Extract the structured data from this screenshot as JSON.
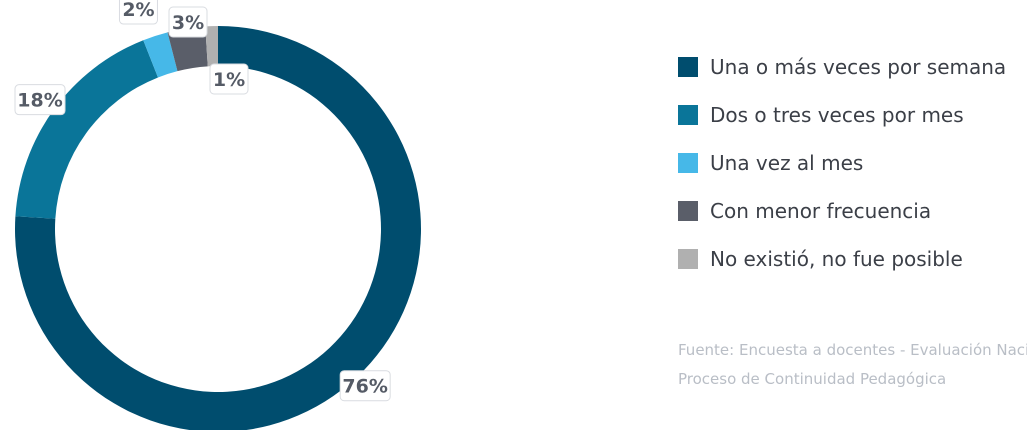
{
  "chart_data": {
    "type": "pie",
    "categories": [
      "Una o más veces por semana",
      "Dos o tres veces por mes",
      "Una vez al mes",
      "Con menor frecuencia",
      "No existió, no fue posible"
    ],
    "values": [
      76,
      18,
      2,
      3,
      1
    ],
    "value_labels": [
      "76%",
      "18%",
      "2%",
      "3%",
      "1%"
    ],
    "colors": [
      "#004d6e",
      "#0a7599",
      "#46b8e8",
      "#5a5e69",
      "#b0b0b0"
    ],
    "legend_position": "right",
    "donut": true
  },
  "source": {
    "line1": "Fuente: Encuesta a docentes - Evaluación Nacional del",
    "line2": "Proceso de Continuidad Pedagógica"
  }
}
